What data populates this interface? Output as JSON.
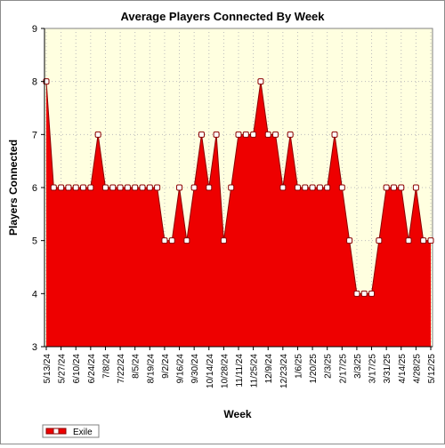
{
  "chart_data": {
    "type": "area",
    "title": "Average Players Connected By Week",
    "xlabel": "Week",
    "ylabel": "Players Connected",
    "ylim": [
      3,
      9
    ],
    "yticks": [
      3,
      4,
      5,
      6,
      7,
      8,
      9
    ],
    "grid": true,
    "legend": "bottom-left",
    "categories": [
      "5/13/24",
      "5/20/24",
      "5/27/24",
      "6/3/24",
      "6/10/24",
      "6/17/24",
      "6/24/24",
      "7/1/24",
      "7/8/24",
      "7/15/24",
      "7/22/24",
      "7/29/24",
      "8/5/24",
      "8/12/24",
      "8/19/24",
      "8/26/24",
      "9/2/24",
      "9/9/24",
      "9/16/24",
      "9/23/24",
      "9/30/24",
      "10/7/24",
      "10/14/24",
      "10/21/24",
      "10/28/24",
      "11/4/24",
      "11/11/24",
      "11/18/24",
      "11/25/24",
      "12/2/24",
      "12/9/24",
      "12/16/24",
      "12/23/24",
      "12/30/24",
      "1/6/25",
      "1/13/25",
      "1/20/25",
      "1/27/25",
      "2/3/25",
      "2/10/25",
      "2/17/25",
      "2/24/25",
      "3/3/25",
      "3/10/25",
      "3/17/25",
      "3/24/25",
      "3/31/25",
      "4/7/25",
      "4/14/25",
      "4/21/25",
      "4/28/25",
      "5/5/25",
      "5/12/25"
    ],
    "x_tick_labels": [
      "5/13/24",
      "5/27/24",
      "6/10/24",
      "6/24/24",
      "7/8/24",
      "7/22/24",
      "8/5/24",
      "8/19/24",
      "9/2/24",
      "9/16/24",
      "9/30/24",
      "10/14/24",
      "10/28/24",
      "11/11/24",
      "11/25/24",
      "12/9/24",
      "12/23/24",
      "1/6/25",
      "1/20/25",
      "2/3/25",
      "2/17/25",
      "3/3/25",
      "3/17/25",
      "3/31/25",
      "4/14/25",
      "4/28/25",
      "5/12/25"
    ],
    "series": [
      {
        "name": "Exile",
        "values": [
          8,
          6,
          6,
          6,
          6,
          6,
          6,
          7,
          6,
          6,
          6,
          6,
          6,
          6,
          6,
          6,
          5,
          5,
          6,
          5,
          6,
          7,
          6,
          7,
          5,
          6,
          7,
          7,
          7,
          8,
          7,
          7,
          6,
          7,
          6,
          6,
          6,
          6,
          6,
          7,
          6,
          5,
          4,
          4,
          4,
          5,
          6,
          6,
          6,
          5,
          6,
          5,
          5
        ],
        "fill_color": "#ee0000",
        "line_color": "#8b0000"
      }
    ],
    "plot_background": "#ffffe0"
  }
}
